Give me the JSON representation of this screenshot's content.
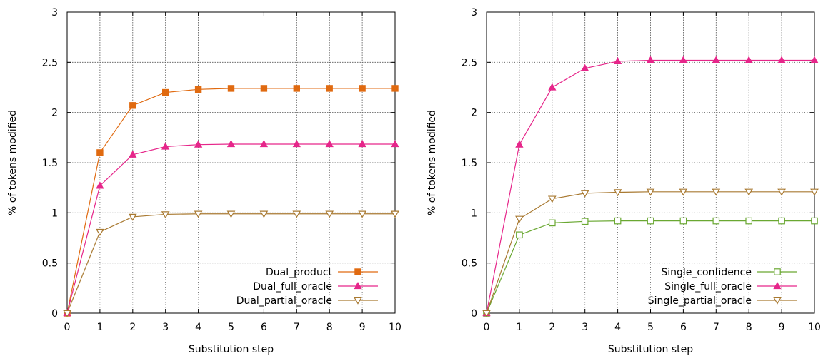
{
  "chart_data": [
    {
      "type": "line",
      "title": "",
      "xlabel": "Substitution step",
      "ylabel": "% of tokens modified",
      "xlim": [
        0,
        10
      ],
      "ylim": [
        0,
        3
      ],
      "xticks": [
        "0",
        "1",
        "2",
        "3",
        "4",
        "5",
        "6",
        "7",
        "8",
        "9",
        "10"
      ],
      "yticks": [
        "0",
        "0.5",
        "1",
        "1.5",
        "2",
        "2.5",
        "3"
      ],
      "grid": true,
      "legend_position": "bottom-right",
      "x": [
        0,
        1,
        2,
        3,
        4,
        5,
        6,
        7,
        8,
        9,
        10
      ],
      "series": [
        {
          "name": "Dual_product",
          "color": "#e06a10",
          "marker": "square-filled",
          "values": [
            0,
            1.6,
            2.07,
            2.2,
            2.23,
            2.24,
            2.24,
            2.24,
            2.24,
            2.24,
            2.24
          ]
        },
        {
          "name": "Dual_full_oracle",
          "color": "#e6268a",
          "marker": "triangle-up-filled",
          "values": [
            0,
            1.27,
            1.58,
            1.66,
            1.68,
            1.685,
            1.685,
            1.685,
            1.685,
            1.685,
            1.685
          ]
        },
        {
          "name": "Dual_partial_oracle",
          "color": "#a97a32",
          "marker": "triangle-down-open",
          "values": [
            0,
            0.81,
            0.96,
            0.985,
            0.99,
            0.99,
            0.99,
            0.99,
            0.99,
            0.99,
            0.99
          ]
        }
      ]
    },
    {
      "type": "line",
      "title": "",
      "xlabel": "Substitution step",
      "ylabel": "% of tokens modified",
      "xlim": [
        0,
        10
      ],
      "ylim": [
        0,
        3
      ],
      "xticks": [
        "0",
        "1",
        "2",
        "3",
        "4",
        "5",
        "6",
        "7",
        "8",
        "9",
        "10"
      ],
      "yticks": [
        "0",
        "0.5",
        "1",
        "1.5",
        "2",
        "2.5",
        "3"
      ],
      "grid": true,
      "legend_position": "bottom-right",
      "x": [
        0,
        1,
        2,
        3,
        4,
        5,
        6,
        7,
        8,
        9,
        10
      ],
      "series": [
        {
          "name": "Single_confidence",
          "color": "#6aa832",
          "marker": "square-open",
          "values": [
            0,
            0.78,
            0.9,
            0.915,
            0.92,
            0.92,
            0.92,
            0.92,
            0.92,
            0.92,
            0.92
          ]
        },
        {
          "name": "Single_full_oracle",
          "color": "#e6268a",
          "marker": "triangle-up-filled",
          "values": [
            0,
            1.68,
            2.25,
            2.44,
            2.51,
            2.52,
            2.52,
            2.52,
            2.52,
            2.52,
            2.52
          ]
        },
        {
          "name": "Single_partial_oracle",
          "color": "#a97a32",
          "marker": "triangle-down-open",
          "values": [
            0,
            0.94,
            1.14,
            1.195,
            1.205,
            1.21,
            1.21,
            1.21,
            1.21,
            1.21,
            1.21
          ]
        }
      ]
    }
  ]
}
